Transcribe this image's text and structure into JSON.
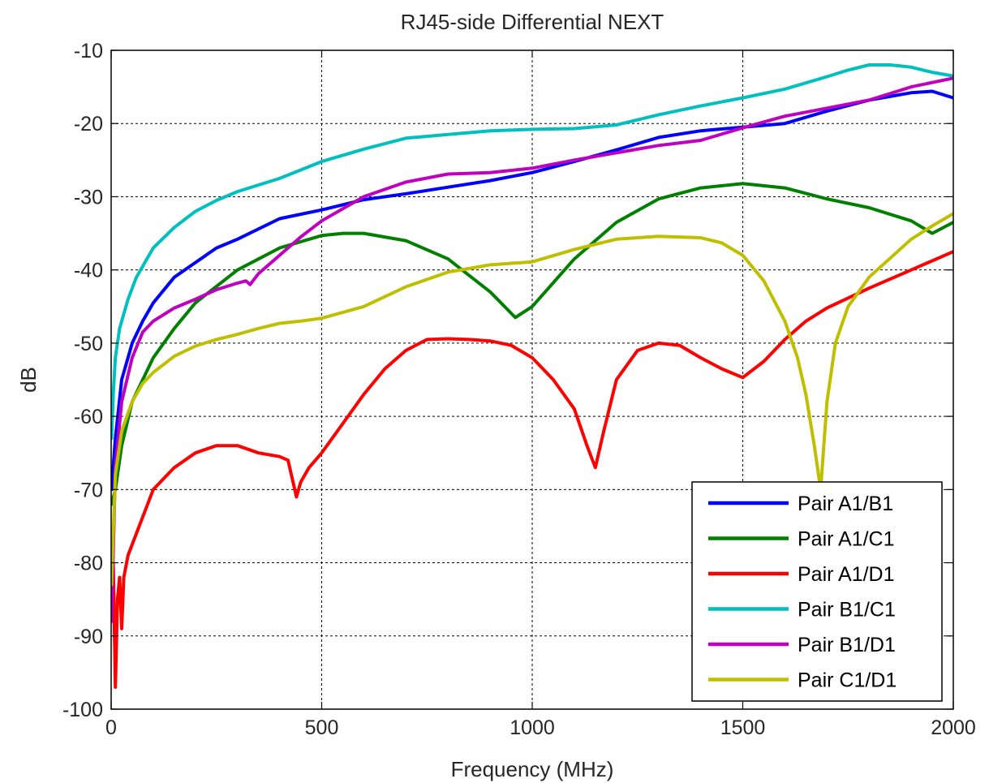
{
  "chart_data": {
    "type": "line",
    "title": "RJ45-side Differential NEXT",
    "xlabel": "Frequency (MHz)",
    "ylabel": "dB",
    "xlim": [
      0,
      2000
    ],
    "ylim": [
      -100,
      -10
    ],
    "xticks": [
      0,
      500,
      1000,
      1500,
      2000
    ],
    "yticks": [
      -100,
      -90,
      -80,
      -70,
      -60,
      -50,
      -40,
      -30,
      -20,
      -10
    ],
    "grid": true,
    "legend_position": "bottom-right",
    "series": [
      {
        "name": "Pair A1/B1",
        "color": "#0000ff",
        "x": [
          1,
          10,
          25,
          50,
          75,
          100,
          150,
          200,
          250,
          300,
          400,
          500,
          600,
          700,
          800,
          900,
          1000,
          1100,
          1200,
          1300,
          1400,
          1500,
          1600,
          1700,
          1800,
          1900,
          1950,
          2000
        ],
        "y": [
          -70,
          -63,
          -55,
          -50,
          -47,
          -44.5,
          -41,
          -39,
          -37,
          -35.8,
          -33,
          -31.8,
          -30.4,
          -29.6,
          -28.7,
          -27.8,
          -26.7,
          -25.2,
          -23.6,
          -21.9,
          -21,
          -20.5,
          -20,
          -18.3,
          -16.8,
          -15.8,
          -15.6,
          -16.5
        ]
      },
      {
        "name": "Pair A1/C1",
        "color": "#008000",
        "x": [
          1,
          10,
          25,
          50,
          100,
          150,
          200,
          300,
          400,
          500,
          550,
          600,
          700,
          800,
          900,
          960,
          1000,
          1100,
          1200,
          1300,
          1400,
          1500,
          1600,
          1700,
          1800,
          1900,
          1950,
          2000
        ],
        "y": [
          -72,
          -70,
          -64,
          -58,
          -52,
          -48,
          -44.5,
          -40,
          -37,
          -35.3,
          -35,
          -35,
          -36,
          -38.5,
          -43,
          -46.5,
          -45,
          -38.5,
          -33.5,
          -30.3,
          -28.8,
          -28.2,
          -28.8,
          -30.3,
          -31.5,
          -33.3,
          -35,
          -33.5
        ]
      },
      {
        "name": "Pair A1/D1",
        "color": "#ff0000",
        "x": [
          1,
          5,
          10,
          15,
          20,
          25,
          30,
          40,
          60,
          100,
          150,
          200,
          250,
          300,
          350,
          400,
          420,
          440,
          450,
          470,
          500,
          550,
          600,
          650,
          700,
          750,
          800,
          850,
          900,
          950,
          1000,
          1050,
          1100,
          1130,
          1150,
          1170,
          1200,
          1250,
          1300,
          1350,
          1400,
          1450,
          1500,
          1550,
          1600,
          1650,
          1700,
          1800,
          1900,
          2000
        ],
        "y": [
          -88,
          -80,
          -97,
          -85,
          -82,
          -89,
          -82,
          -79,
          -76,
          -70,
          -67,
          -65,
          -64,
          -64,
          -65,
          -65.5,
          -66,
          -71,
          -69,
          -67,
          -65,
          -61,
          -57,
          -53.5,
          -51,
          -49.5,
          -49.4,
          -49.5,
          -49.7,
          -50.3,
          -52,
          -55,
          -59,
          -64,
          -67,
          -62,
          -55,
          -51,
          -50,
          -50.3,
          -52,
          -53.5,
          -54.7,
          -52.5,
          -49.5,
          -47,
          -45.2,
          -42.5,
          -40,
          -37.5
        ]
      },
      {
        "name": "Pair B1/C1",
        "color": "#00bfbf",
        "x": [
          1,
          5,
          10,
          20,
          40,
          60,
          80,
          100,
          150,
          200,
          250,
          300,
          400,
          500,
          600,
          700,
          800,
          900,
          1000,
          1100,
          1200,
          1300,
          1400,
          1500,
          1600,
          1700,
          1750,
          1800,
          1850,
          1900,
          1950,
          2000
        ],
        "y": [
          -63,
          -57,
          -52,
          -48,
          -44,
          -41,
          -39,
          -37,
          -34.2,
          -32,
          -30.5,
          -29.3,
          -27.5,
          -25.2,
          -23.5,
          -22,
          -21.5,
          -21,
          -20.8,
          -20.7,
          -20.2,
          -18.8,
          -17.6,
          -16.5,
          -15.3,
          -13.6,
          -12.7,
          -12,
          -12,
          -12.3,
          -13,
          -13.5
        ]
      },
      {
        "name": "Pair B1/D1",
        "color": "#bf00bf",
        "x": [
          1,
          10,
          25,
          50,
          75,
          100,
          150,
          200,
          250,
          300,
          320,
          330,
          350,
          400,
          450,
          500,
          600,
          700,
          800,
          900,
          1000,
          1100,
          1200,
          1300,
          1400,
          1500,
          1600,
          1700,
          1800,
          1900,
          2000
        ],
        "y": [
          -88,
          -67,
          -58,
          -52,
          -48.5,
          -47,
          -45.2,
          -44,
          -42.7,
          -41.8,
          -41.5,
          -42,
          -40.5,
          -38,
          -35.5,
          -33.3,
          -30,
          -28,
          -26.9,
          -26.7,
          -26.1,
          -25,
          -24,
          -23,
          -22.3,
          -20.6,
          -19,
          -17.9,
          -16.8,
          -15,
          -13.8
        ]
      },
      {
        "name": "Pair C1/D1",
        "color": "#bfbf00",
        "x": [
          1,
          5,
          10,
          25,
          50,
          75,
          100,
          150,
          200,
          250,
          300,
          350,
          400,
          450,
          500,
          600,
          700,
          800,
          900,
          1000,
          1100,
          1200,
          1300,
          1400,
          1450,
          1500,
          1550,
          1600,
          1630,
          1650,
          1670,
          1680,
          1685,
          1690,
          1700,
          1720,
          1750,
          1800,
          1850,
          1900,
          1950,
          2000
        ],
        "y": [
          -83,
          -76,
          -68,
          -62,
          -58,
          -55.5,
          -54,
          -51.8,
          -50.4,
          -49.5,
          -48.8,
          -48,
          -47.3,
          -47,
          -46.6,
          -45,
          -42.3,
          -40.3,
          -39.3,
          -38.9,
          -37.2,
          -35.8,
          -35.4,
          -35.6,
          -36.3,
          -38,
          -41.5,
          -47,
          -52,
          -57,
          -64,
          -68,
          -70,
          -66,
          -58,
          -50,
          -45,
          -41,
          -38.4,
          -35.8,
          -34,
          -32.3
        ]
      }
    ]
  }
}
